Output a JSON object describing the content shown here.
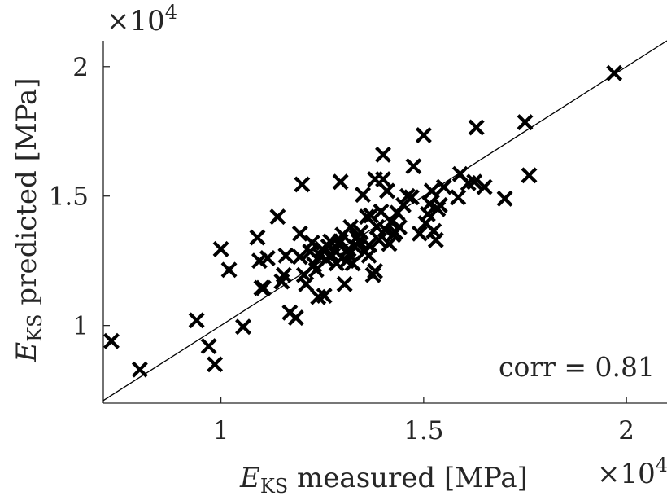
{
  "chart_data": {
    "type": "scatter",
    "x_multiplier_label": "×10",
    "x_multiplier_exp": "4",
    "y_multiplier_label": "×10",
    "y_multiplier_exp": "4",
    "xlabel_main": "E",
    "xlabel_sub": "KS",
    "xlabel_rest": " measured [MPa]",
    "ylabel_main": "E",
    "ylabel_sub": "KS",
    "ylabel_rest": " predicted [MPa]",
    "xlim": [
      7100,
      21000
    ],
    "ylim": [
      7000,
      21000
    ],
    "x_ticks": [
      10000,
      15000,
      20000
    ],
    "x_tick_labels": [
      "1",
      "1.5",
      "2"
    ],
    "y_ticks": [
      10000,
      15000,
      20000
    ],
    "y_tick_labels": [
      "1",
      "1.5",
      "2"
    ],
    "reference_line": "y = x",
    "annotation": "corr = 0.81",
    "grid": false,
    "box": "left-bottom",
    "series": [
      {
        "marker": "x",
        "color": "#000000",
        "points": [
          [
            7300,
            9400
          ],
          [
            8000,
            8300
          ],
          [
            9400,
            10200
          ],
          [
            9700,
            9200
          ],
          [
            9850,
            8500
          ],
          [
            10000,
            12950
          ],
          [
            10200,
            12150
          ],
          [
            10550,
            9950
          ],
          [
            10900,
            13400
          ],
          [
            10950,
            12500
          ],
          [
            11000,
            11450
          ],
          [
            11050,
            11450
          ],
          [
            11150,
            12600
          ],
          [
            11400,
            14200
          ],
          [
            11500,
            11700
          ],
          [
            11550,
            11950
          ],
          [
            11600,
            12700
          ],
          [
            11700,
            10500
          ],
          [
            11850,
            10300
          ],
          [
            11950,
            13550
          ],
          [
            11950,
            12650
          ],
          [
            12000,
            15450
          ],
          [
            12050,
            11950
          ],
          [
            12100,
            11600
          ],
          [
            12200,
            12850
          ],
          [
            12250,
            13200
          ],
          [
            12300,
            12350
          ],
          [
            12350,
            12150
          ],
          [
            12400,
            11100
          ],
          [
            12450,
            12700
          ],
          [
            12500,
            12950
          ],
          [
            12550,
            11150
          ],
          [
            12600,
            12550
          ],
          [
            12700,
            13250
          ],
          [
            12750,
            12700
          ],
          [
            12800,
            12900
          ],
          [
            12850,
            12400
          ],
          [
            12900,
            13150
          ],
          [
            12950,
            15550
          ],
          [
            13000,
            13500
          ],
          [
            13050,
            11600
          ],
          [
            13100,
            12500
          ],
          [
            13150,
            12750
          ],
          [
            13200,
            13800
          ],
          [
            13250,
            12400
          ],
          [
            13300,
            13050
          ],
          [
            13350,
            13400
          ],
          [
            13400,
            13250
          ],
          [
            13450,
            13600
          ],
          [
            13500,
            15050
          ],
          [
            13550,
            12850
          ],
          [
            13600,
            14200
          ],
          [
            13650,
            13100
          ],
          [
            13700,
            14250
          ],
          [
            13750,
            11950
          ],
          [
            13800,
            12100
          ],
          [
            13800,
            15650
          ],
          [
            13850,
            13800
          ],
          [
            13900,
            13300
          ],
          [
            13950,
            14400
          ],
          [
            14000,
            16600
          ],
          [
            14000,
            15650
          ],
          [
            14100,
            15200
          ],
          [
            14150,
            13150
          ],
          [
            14200,
            14000
          ],
          [
            14250,
            13500
          ],
          [
            14300,
            13600
          ],
          [
            14350,
            14350
          ],
          [
            14400,
            13800
          ],
          [
            14500,
            14650
          ],
          [
            14600,
            15000
          ],
          [
            14700,
            14950
          ],
          [
            14750,
            16150
          ],
          [
            14900,
            13550
          ],
          [
            15000,
            17350
          ],
          [
            15050,
            13950
          ],
          [
            15100,
            14300
          ],
          [
            15150,
            14700
          ],
          [
            15200,
            15200
          ],
          [
            15250,
            13650
          ],
          [
            15300,
            13300
          ],
          [
            15350,
            14500
          ],
          [
            15400,
            14650
          ],
          [
            15500,
            15350
          ],
          [
            15850,
            14950
          ],
          [
            15900,
            15850
          ],
          [
            16100,
            15500
          ],
          [
            16300,
            17650
          ],
          [
            16250,
            15550
          ],
          [
            16500,
            15350
          ],
          [
            17000,
            14900
          ],
          [
            17500,
            17850
          ],
          [
            17600,
            15800
          ],
          [
            19700,
            19750
          ],
          [
            12650,
            13050
          ],
          [
            13150,
            12950
          ],
          [
            13650,
            12700
          ],
          [
            14050,
            13700
          ],
          [
            12950,
            13250
          ]
        ]
      }
    ]
  }
}
